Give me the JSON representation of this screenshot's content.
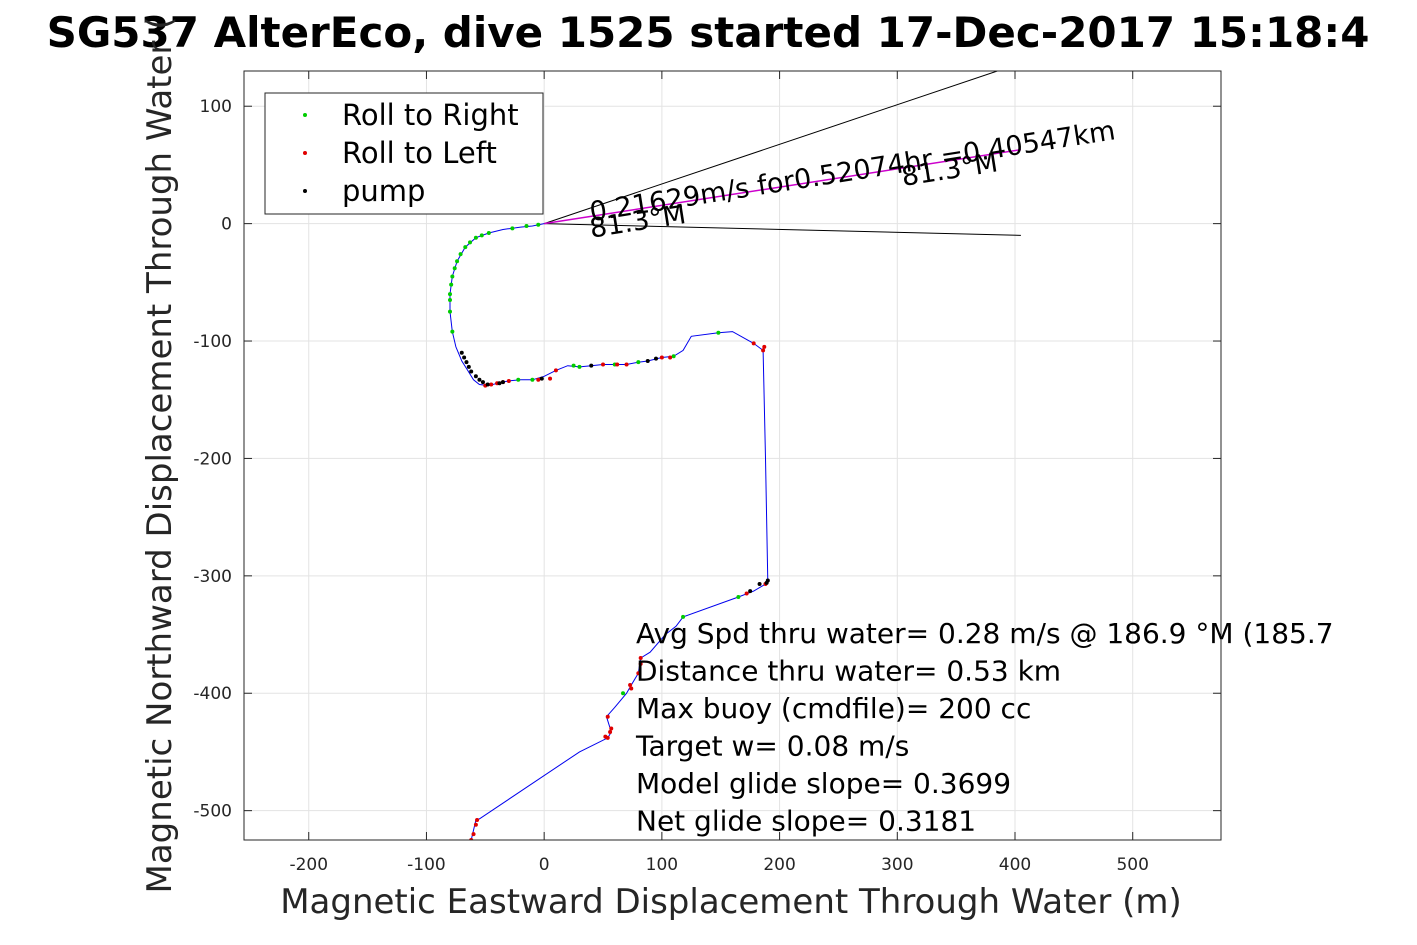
{
  "chart_data": {
    "type": "line",
    "title": "SG537 AlterEco, dive 1525 started 17-Dec-2017 15:18:4",
    "xlabel": "Magnetic Eastward Displacement Through Water (m)",
    "ylabel": "Magnetic Northward Displacement Through Water (",
    "xlim": [
      -255,
      575
    ],
    "ylim": [
      -525,
      130
    ],
    "xticks": [
      -200,
      -100,
      0,
      100,
      200,
      300,
      400,
      500
    ],
    "yticks": [
      -500,
      -400,
      -300,
      -200,
      -100,
      0,
      100
    ],
    "xtick_labels": [
      "-200",
      "-100",
      "0",
      "100",
      "200",
      "300",
      "400",
      "500"
    ],
    "ytick_labels": [
      "-500",
      "-400",
      "-300",
      "-200",
      "-100",
      "0",
      "100"
    ],
    "grid": true,
    "legend": {
      "placement": "top-left",
      "entries": [
        {
          "label": "Roll to Right",
          "color": "#00cc00"
        },
        {
          "label": "Roll to Left",
          "color": "#e00000"
        },
        {
          "label": "pump",
          "color": "#000000"
        }
      ]
    },
    "track_color": "#0000ee",
    "track": [
      [
        -62,
        -525
      ],
      [
        -58,
        -508
      ],
      [
        -55,
        -507
      ],
      [
        30,
        -450
      ],
      [
        54,
        -438
      ],
      [
        57,
        -433
      ],
      [
        53,
        -420
      ],
      [
        60,
        -412
      ],
      [
        70,
        -400
      ],
      [
        74,
        -393
      ],
      [
        80,
        -383
      ],
      [
        82,
        -370
      ],
      [
        90,
        -365
      ],
      [
        103,
        -350
      ],
      [
        112,
        -343
      ],
      [
        118,
        -335
      ],
      [
        165,
        -318
      ],
      [
        178,
        -313
      ],
      [
        188,
        -307
      ],
      [
        190,
        -305
      ],
      [
        188,
        -200
      ],
      [
        186,
        -108
      ],
      [
        178,
        -102
      ],
      [
        160,
        -92
      ],
      [
        148,
        -93
      ],
      [
        125,
        -96
      ],
      [
        118,
        -108
      ],
      [
        110,
        -113
      ],
      [
        100,
        -114
      ],
      [
        88,
        -117
      ],
      [
        80,
        -118
      ],
      [
        70,
        -120
      ],
      [
        62,
        -120
      ],
      [
        50,
        -120
      ],
      [
        40,
        -121
      ],
      [
        30,
        -122
      ],
      [
        20,
        -121
      ],
      [
        10,
        -125
      ],
      [
        0,
        -130
      ],
      [
        -10,
        -133
      ],
      [
        -20,
        -133
      ],
      [
        -30,
        -134
      ],
      [
        -40,
        -136
      ],
      [
        -47,
        -138
      ],
      [
        -55,
        -137
      ],
      [
        -60,
        -133
      ],
      [
        -65,
        -125
      ],
      [
        -70,
        -117
      ],
      [
        -75,
        -105
      ],
      [
        -78,
        -92
      ],
      [
        -80,
        -75
      ],
      [
        -80,
        -60
      ],
      [
        -78,
        -45
      ],
      [
        -74,
        -32
      ],
      [
        -67,
        -20
      ],
      [
        -58,
        -12
      ],
      [
        -47,
        -8
      ],
      [
        -35,
        -5
      ],
      [
        -20,
        -3
      ],
      [
        -10,
        -2
      ],
      [
        0,
        0
      ]
    ],
    "roll_right_points": [
      [
        -78,
        -92
      ],
      [
        -80,
        -75
      ],
      [
        -80,
        -65
      ],
      [
        -80,
        -60
      ],
      [
        -79,
        -52
      ],
      [
        -78,
        -45
      ],
      [
        -76,
        -38
      ],
      [
        -74,
        -32
      ],
      [
        -71,
        -26
      ],
      [
        -67,
        -20
      ],
      [
        -63,
        -16
      ],
      [
        -58,
        -12
      ],
      [
        -53,
        -10
      ],
      [
        -47,
        -8
      ],
      [
        -27,
        -4
      ],
      [
        -15,
        -2
      ],
      [
        -5,
        -1
      ],
      [
        -22,
        -133
      ],
      [
        -10,
        -133
      ],
      [
        25,
        -121
      ],
      [
        30,
        -122
      ],
      [
        60,
        -120
      ],
      [
        80,
        -118
      ],
      [
        110,
        -113
      ],
      [
        148,
        -93
      ],
      [
        165,
        -318
      ],
      [
        67,
        -400
      ],
      [
        118,
        -335
      ]
    ],
    "roll_left_points": [
      [
        -50,
        -138
      ],
      [
        -45,
        -137
      ],
      [
        -40,
        -136
      ],
      [
        -35,
        -135
      ],
      [
        -30,
        -134
      ],
      [
        -5,
        -133
      ],
      [
        5,
        -132
      ],
      [
        10,
        -125
      ],
      [
        50,
        -120
      ],
      [
        62,
        -120
      ],
      [
        70,
        -120
      ],
      [
        100,
        -114
      ],
      [
        107,
        -114
      ],
      [
        178,
        -102
      ],
      [
        186,
        -108
      ],
      [
        187,
        -105
      ],
      [
        188,
        -307
      ],
      [
        172,
        -315
      ],
      [
        80,
        -383
      ],
      [
        82,
        -370
      ],
      [
        82,
        -375
      ],
      [
        73,
        -393
      ],
      [
        74,
        -396
      ],
      [
        54,
        -420
      ],
      [
        56,
        -433
      ],
      [
        57,
        -430
      ],
      [
        52,
        -437
      ],
      [
        54,
        -438
      ],
      [
        -57,
        -508
      ],
      [
        -58,
        -512
      ],
      [
        -62,
        -525
      ],
      [
        -60,
        -520
      ]
    ],
    "pump_points": [
      [
        -70,
        -110
      ],
      [
        -68,
        -114
      ],
      [
        -66,
        -118
      ],
      [
        -64,
        -122
      ],
      [
        -62,
        -126
      ],
      [
        -58,
        -130
      ],
      [
        -55,
        -133
      ],
      [
        -52,
        -135
      ],
      [
        -48,
        -137
      ],
      [
        -38,
        -136
      ],
      [
        -35,
        -135
      ],
      [
        183,
        -307
      ],
      [
        189,
        -306
      ],
      [
        190,
        -304
      ],
      [
        175,
        -313
      ],
      [
        -2,
        -132
      ],
      [
        40,
        -121
      ],
      [
        88,
        -117
      ],
      [
        95,
        -115
      ]
    ],
    "current_vector": {
      "color": "#cc00cc",
      "from": [
        0,
        0
      ],
      "to": [
        405,
        63
      ]
    },
    "cone_lines": [
      {
        "from": [
          0,
          0
        ],
        "to": [
          385,
          130
        ]
      },
      {
        "from": [
          0,
          0
        ],
        "to": [
          405,
          -10
        ]
      }
    ],
    "annotations": [
      {
        "text": "0.21629m/s for0.52074hr =0.40547km",
        "x": 40,
        "y": 2,
        "rotate": -8.9
      },
      {
        "text": "81.3°M",
        "x": 40,
        "y": -12,
        "rotate": -8.9
      },
      {
        "text": "81.3°M",
        "x": 305,
        "y": 32,
        "rotate": -8.9
      }
    ],
    "stats": [
      "Avg Spd thru water=  0.28 m/s @ 186.9 °M (185.7",
      "Distance thru water=  0.53 km",
      "Max buoy (cmdfile)= 200 cc",
      "Target w= 0.08 m/s",
      "Model glide slope= 0.3699",
      "Net glide slope= 0.3181"
    ]
  }
}
